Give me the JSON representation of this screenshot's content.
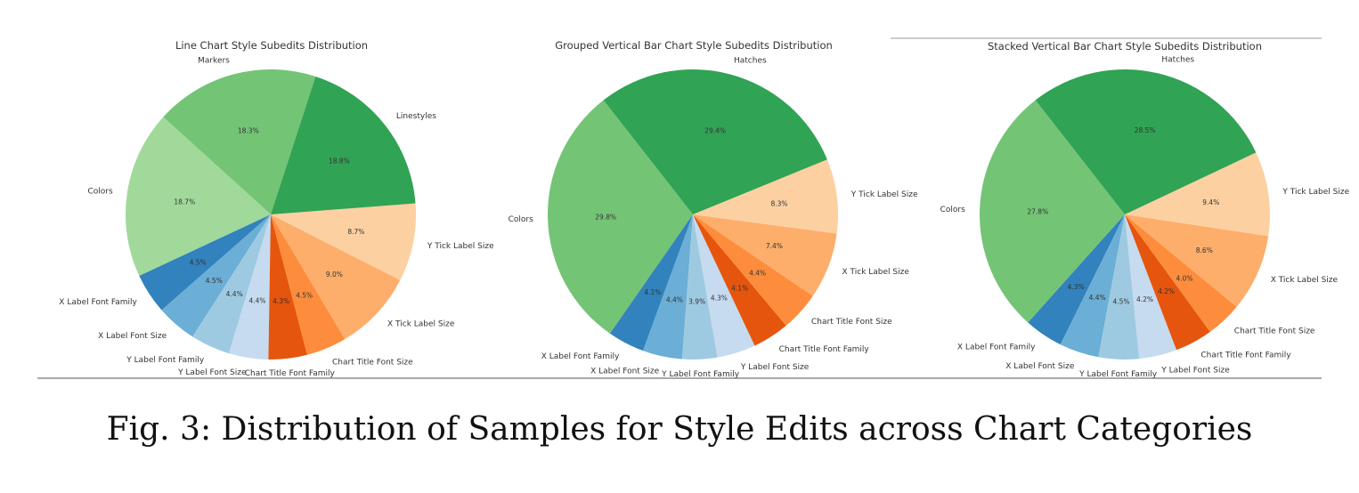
{
  "caption": "Fig. 3: Distribution of Samples for Style Edits across Chart Categories",
  "chart_data": [
    {
      "type": "pie",
      "title": "Line Chart Style Subedits Distribution",
      "slices": [
        {
          "label": "Markers",
          "value": 18.3,
          "pct_label": "18.3%",
          "color": "#74c476"
        },
        {
          "label": "Colors",
          "value": 18.7,
          "pct_label": "18.7%",
          "color": "#a1d99b"
        },
        {
          "label": "X Label Font Family",
          "value": 4.5,
          "pct_label": "4.5%",
          "color": "#3182bd"
        },
        {
          "label": "X Label Font Size",
          "value": 4.5,
          "pct_label": "4.5%",
          "color": "#6baed6"
        },
        {
          "label": "Y Label Font Family",
          "value": 4.4,
          "pct_label": "4.4%",
          "color": "#9ecae1"
        },
        {
          "label": "Y Label Font Size",
          "value": 4.4,
          "pct_label": "4.4%",
          "color": "#c6dbef"
        },
        {
          "label": "Chart Title Font Family",
          "value": 4.3,
          "pct_label": "4.3%",
          "color": "#e6550d"
        },
        {
          "label": "Chart Title Font Size",
          "value": 4.5,
          "pct_label": "4.5%",
          "color": "#fd8d3c"
        },
        {
          "label": "X Tick Label Size",
          "value": 9.0,
          "pct_label": "9.0%",
          "color": "#fdae6b"
        },
        {
          "label": "Y Tick Label Size",
          "value": 8.7,
          "pct_label": "8.7%",
          "color": "#fdd0a2"
        },
        {
          "label": "Linestyles",
          "value": 18.8,
          "pct_label": "18.8%",
          "color": "#31a354"
        }
      ]
    },
    {
      "type": "pie",
      "title": "Grouped Vertical Bar Chart Style Subedits Distribution",
      "slices": [
        {
          "label": "Colors",
          "value": 29.8,
          "pct_label": "29.8%",
          "color": "#74c476"
        },
        {
          "label": "X Label Font Family",
          "value": 4.1,
          "pct_label": "4.1%",
          "color": "#3182bd"
        },
        {
          "label": "X Label Font Size",
          "value": 4.4,
          "pct_label": "4.4%",
          "color": "#6baed6"
        },
        {
          "label": "Y Label Font Family",
          "value": 3.9,
          "pct_label": "3.9%",
          "color": "#9ecae1"
        },
        {
          "label": "Y Label Font Size",
          "value": 4.3,
          "pct_label": "4.3%",
          "color": "#c6dbef"
        },
        {
          "label": "Chart Title Font Family",
          "value": 4.1,
          "pct_label": "4.1%",
          "color": "#e6550d"
        },
        {
          "label": "Chart Title Font Size",
          "value": 4.4,
          "pct_label": "4.4%",
          "color": "#fd8d3c"
        },
        {
          "label": "X Tick Label Size",
          "value": 7.4,
          "pct_label": "7.4%",
          "color": "#fdae6b"
        },
        {
          "label": "Y Tick Label Size",
          "value": 8.3,
          "pct_label": "8.3%",
          "color": "#fdd0a2"
        },
        {
          "label": "Hatches",
          "value": 29.4,
          "pct_label": "29.4%",
          "color": "#31a354"
        }
      ]
    },
    {
      "type": "pie",
      "title": "Stacked Vertical Bar Chart Style Subedits Distribution",
      "slices": [
        {
          "label": "Colors",
          "value": 27.8,
          "pct_label": "27.8%",
          "color": "#74c476"
        },
        {
          "label": "X Label Font Family",
          "value": 4.3,
          "pct_label": "4.3%",
          "color": "#3182bd"
        },
        {
          "label": "X Label Font Size",
          "value": 4.4,
          "pct_label": "4.4%",
          "color": "#6baed6"
        },
        {
          "label": "Y Label Font Family",
          "value": 4.5,
          "pct_label": "4.5%",
          "color": "#9ecae1"
        },
        {
          "label": "Y Label Font Size",
          "value": 4.2,
          "pct_label": "4.2%",
          "color": "#c6dbef"
        },
        {
          "label": "Chart Title Font Family",
          "value": 4.2,
          "pct_label": "4.2%",
          "color": "#e6550d"
        },
        {
          "label": "Chart Title Font Size",
          "value": 4.0,
          "pct_label": "4.0%",
          "color": "#fd8d3c"
        },
        {
          "label": "X Tick Label Size",
          "value": 8.6,
          "pct_label": "8.6%",
          "color": "#fdae6b"
        },
        {
          "label": "Y Tick Label Size",
          "value": 9.4,
          "pct_label": "9.4%",
          "color": "#fdd0a2"
        },
        {
          "label": "Hatches",
          "value": 28.5,
          "pct_label": "28.5%",
          "color": "#31a354"
        }
      ]
    }
  ]
}
